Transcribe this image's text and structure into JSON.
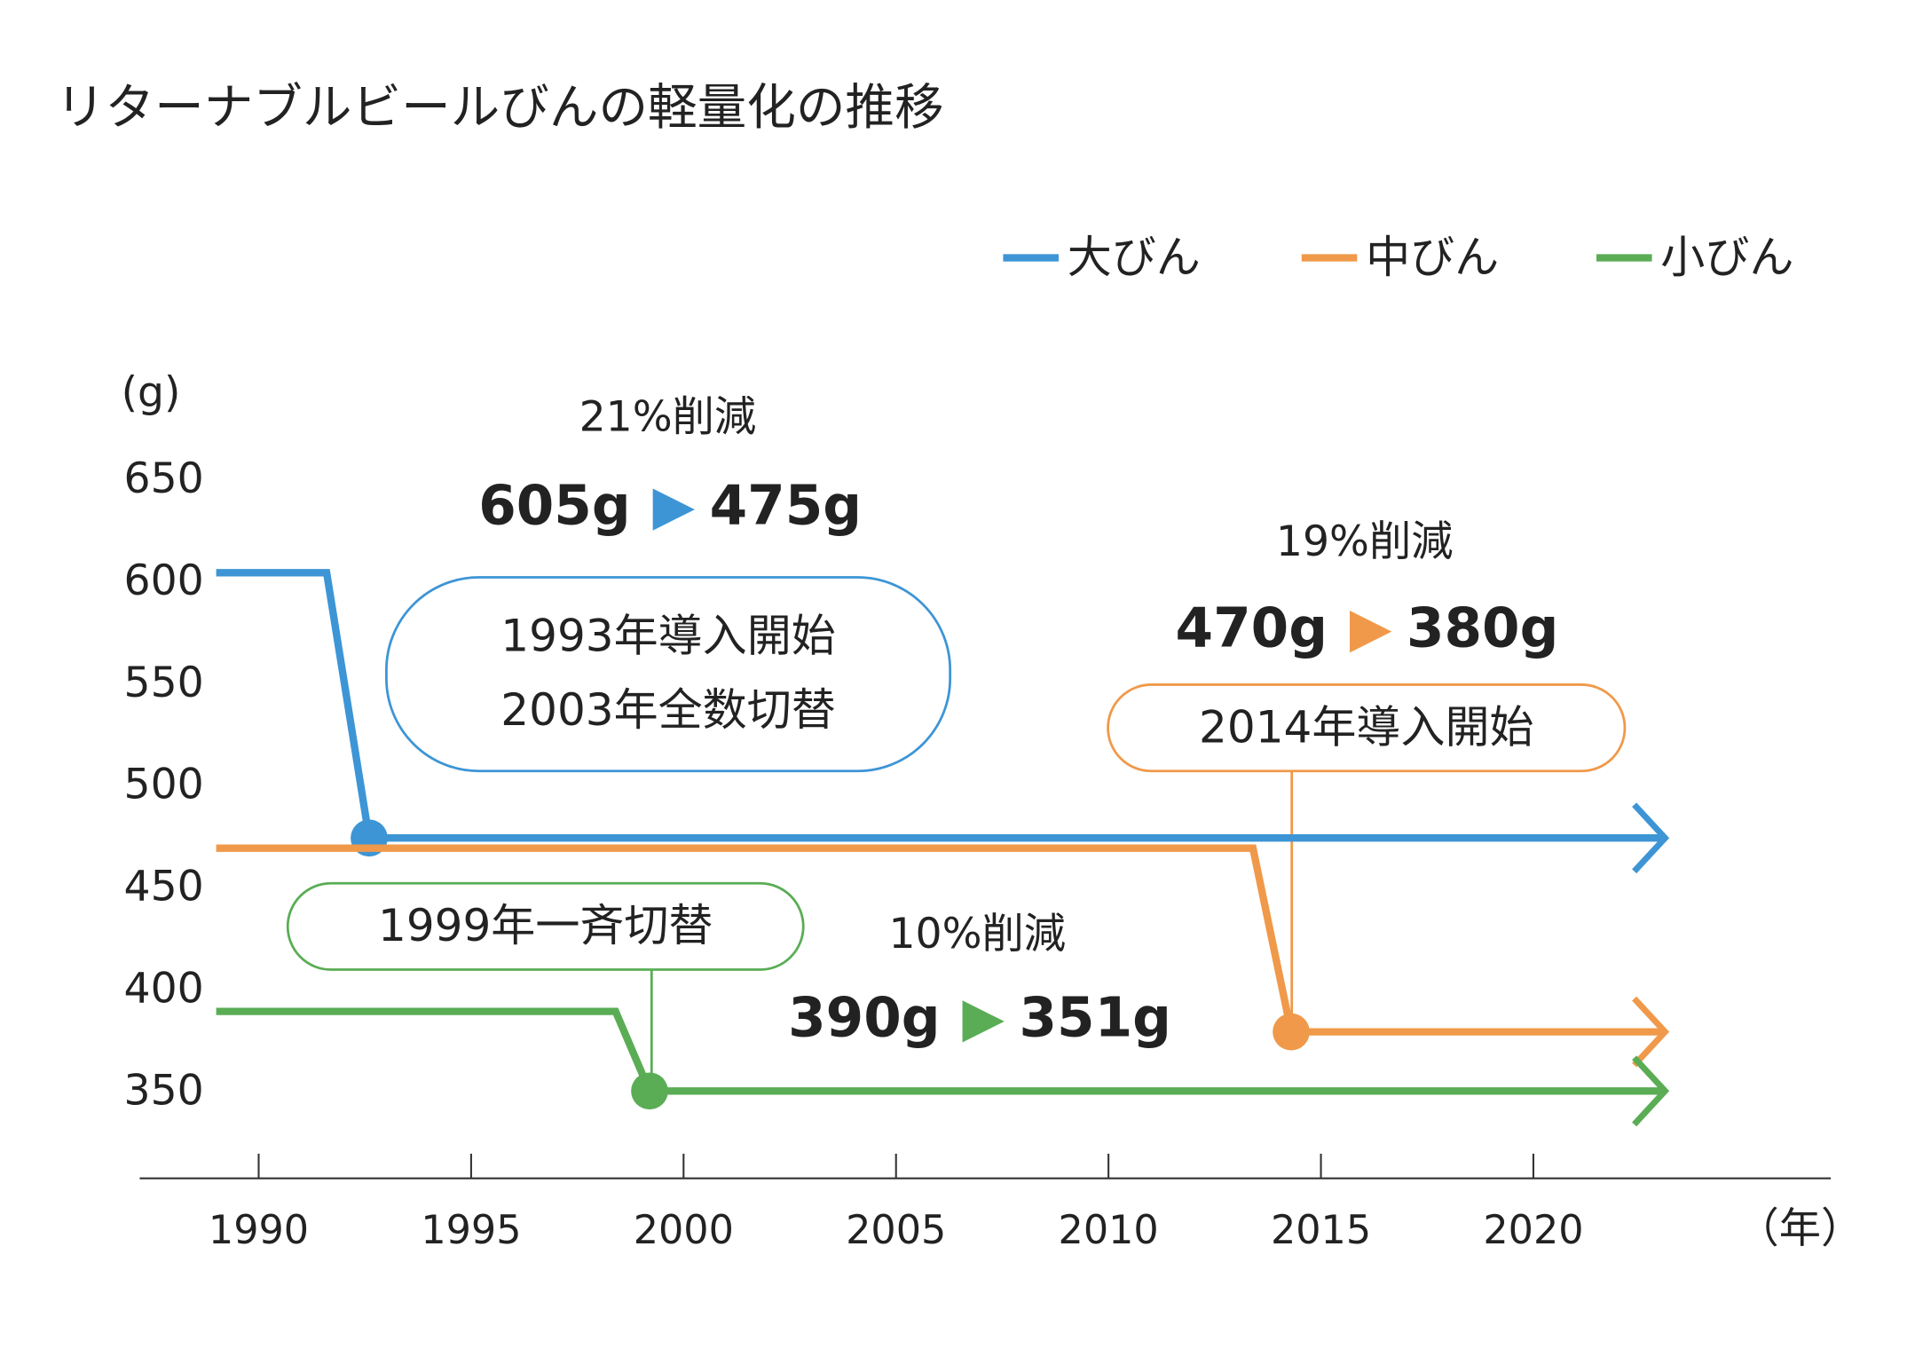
{
  "chart_data": {
    "type": "step-line",
    "title": "リターナブルビールびんの軽量化の推移",
    "y_unit": "(g)",
    "x_unit": "（年）",
    "xlim": [
      1987.2,
      2027
    ],
    "xticks": [
      1990,
      1995,
      2000,
      2005,
      2010,
      2015,
      2020
    ],
    "ylim": [
      310,
      660
    ],
    "yticks": [
      350,
      400,
      450,
      500,
      550,
      600,
      650
    ],
    "grid": false,
    "legend": "top-right",
    "series": [
      {
        "name": "大びん",
        "color": "#3d95d5",
        "x": [
          1989,
          1991.6,
          1992.6,
          2023.1
        ],
        "values": [
          605,
          605,
          475,
          475
        ]
      },
      {
        "name": "中びん",
        "color": "#f0994a",
        "x": [
          1989,
          2013.4,
          2014.3,
          2023.1
        ],
        "values": [
          470,
          470,
          380,
          380
        ]
      },
      {
        "name": "小びん",
        "color": "#5aad55",
        "x": [
          1989,
          1998.4,
          1999.2,
          2023.1
        ],
        "values": [
          390,
          390,
          351,
          351
        ]
      }
    ],
    "annotations": [
      {
        "reduction": "21%削減",
        "before": "605g",
        "after": "475g",
        "note": [
          "1993年導入開始",
          "2003年全数切替"
        ]
      },
      {
        "reduction": "19%削減",
        "before": "470g",
        "after": "380g",
        "note": [
          "2014年導入開始"
        ]
      },
      {
        "reduction": "10%削減",
        "before": "390g",
        "after": "351g",
        "note": [
          "1999年一斉切替"
        ]
      }
    ]
  }
}
